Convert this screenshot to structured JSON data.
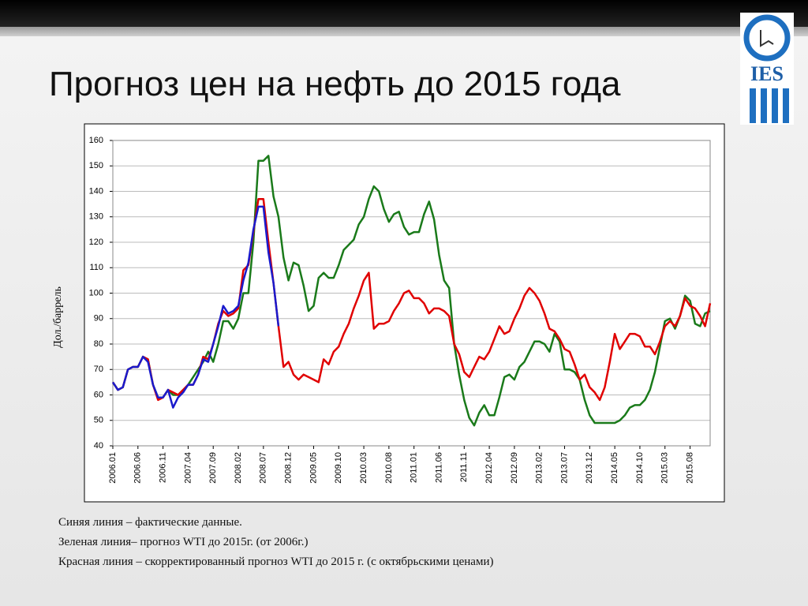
{
  "title": "Прогноз цен на нефть до 2015 года",
  "logo": {
    "text": "IES"
  },
  "notes": [
    "Синяя линия – фактические данные.",
    "Зеленая линия– прогноз WTI до 2015г. (от 2006г.)",
    "Красная линия – скорректированный прогноз WTI до 2015 г. (с октябрьскими ценами)"
  ],
  "chart_data": {
    "type": "line",
    "y_label": "Дол./баррель",
    "ylim": [
      40,
      160
    ],
    "yticks": [
      40,
      50,
      60,
      70,
      80,
      90,
      100,
      110,
      120,
      130,
      140,
      150,
      160
    ],
    "grid": true,
    "categories": [
      "2006.01",
      null,
      null,
      null,
      null,
      "2006.06",
      null,
      null,
      null,
      null,
      "2006.11",
      null,
      null,
      null,
      null,
      "2007.04",
      null,
      null,
      null,
      null,
      "2007.09",
      null,
      null,
      null,
      null,
      "2008.02",
      null,
      null,
      null,
      null,
      "2008.07",
      null,
      null,
      null,
      null,
      "2008.12",
      null,
      null,
      null,
      null,
      "2009.05",
      null,
      null,
      null,
      null,
      "2009.10",
      null,
      null,
      null,
      null,
      "2010.03",
      null,
      null,
      null,
      null,
      "2010.08",
      null,
      null,
      null,
      null,
      "2011.01",
      null,
      null,
      null,
      null,
      "2011.06",
      null,
      null,
      null,
      null,
      "2011.11",
      null,
      null,
      null,
      null,
      "2012.04",
      null,
      null,
      null,
      null,
      "2012.09",
      null,
      null,
      null,
      null,
      "2013.02",
      null,
      null,
      null,
      null,
      "2013.07",
      null,
      null,
      null,
      null,
      "2013.12",
      null,
      null,
      null,
      null,
      "2014.05",
      null,
      null,
      null,
      null,
      "2014.10",
      null,
      null,
      null,
      null,
      "2015.03",
      null,
      null,
      null,
      null,
      "2015.08",
      null,
      null,
      null,
      null
    ],
    "series": [
      {
        "color": "#1a7a1a",
        "values": [
          65,
          62,
          63,
          70,
          71,
          71,
          75,
          74,
          64,
          59,
          59,
          62,
          60,
          60,
          62,
          64,
          67,
          70,
          73,
          77,
          73,
          80,
          89,
          89,
          86,
          90,
          100,
          100,
          120,
          152,
          152,
          154,
          138,
          130,
          114,
          105,
          112,
          111,
          103,
          93,
          95,
          106,
          108,
          106,
          106,
          111,
          117,
          119,
          121,
          127,
          130,
          137,
          142,
          140,
          133,
          128,
          131,
          132,
          126,
          123,
          124,
          124,
          131,
          136,
          129,
          115,
          105,
          102,
          80,
          68,
          58,
          51,
          48,
          53,
          56,
          52,
          52,
          59,
          67,
          68,
          66,
          71,
          73,
          77,
          81,
          81,
          80,
          77,
          84,
          81,
          70,
          70,
          69,
          66,
          58,
          52,
          49,
          49,
          49,
          49,
          49,
          50,
          52,
          55,
          56,
          56,
          58,
          62,
          69,
          79,
          89,
          90,
          86,
          91,
          99,
          97,
          88,
          87,
          92,
          93
        ]
      },
      {
        "color": "#e00000",
        "values": [
          65,
          62,
          63,
          70,
          71,
          71,
          75,
          74,
          64,
          58,
          59,
          62,
          61,
          60,
          62,
          64,
          64,
          68,
          75,
          74,
          80,
          88,
          93,
          91,
          92,
          94,
          109,
          111,
          124,
          137,
          137,
          120,
          104,
          87,
          71,
          73,
          68,
          66,
          68,
          67,
          66,
          65,
          74,
          72,
          77,
          79,
          84,
          88,
          94,
          99,
          105,
          108,
          86,
          88,
          88,
          89,
          93,
          96,
          100,
          101,
          98,
          98,
          96,
          92,
          94,
          94,
          93,
          91,
          80,
          76,
          69,
          67,
          71,
          75,
          74,
          77,
          82,
          87,
          84,
          85,
          90,
          94,
          99,
          102,
          100,
          97,
          92,
          86,
          85,
          82,
          78,
          77,
          72,
          66,
          68,
          63,
          61,
          58,
          63,
          73,
          84,
          78,
          81,
          84,
          84,
          83,
          79,
          79,
          76,
          81,
          87,
          89,
          87,
          91,
          98,
          95,
          94,
          91,
          87,
          96
        ]
      },
      {
        "color": "#1a1acc",
        "values": [
          65,
          62,
          63,
          70,
          71,
          71,
          75,
          73,
          64,
          59,
          59,
          62,
          55,
          59,
          61,
          64,
          64,
          68,
          74,
          73,
          80,
          87,
          95,
          92,
          93,
          95,
          105,
          112,
          125,
          134,
          134,
          116,
          104,
          87,
          null,
          null,
          null,
          null,
          null,
          null,
          null,
          null,
          null,
          null,
          null,
          null,
          null,
          null,
          null,
          null,
          null,
          null,
          null,
          null,
          null,
          null,
          null,
          null,
          null,
          null,
          null,
          null,
          null,
          null,
          null,
          null,
          null,
          null,
          null,
          null,
          null,
          null,
          null,
          null,
          null,
          null,
          null,
          null,
          null,
          null,
          null,
          null,
          null,
          null,
          null,
          null,
          null,
          null,
          null,
          null,
          null,
          null,
          null,
          null,
          null,
          null,
          null,
          null,
          null,
          null,
          null,
          null,
          null,
          null,
          null,
          null,
          null,
          null,
          null,
          null,
          null,
          null,
          null,
          null,
          null,
          null,
          null,
          null,
          null,
          null
        ]
      }
    ]
  }
}
